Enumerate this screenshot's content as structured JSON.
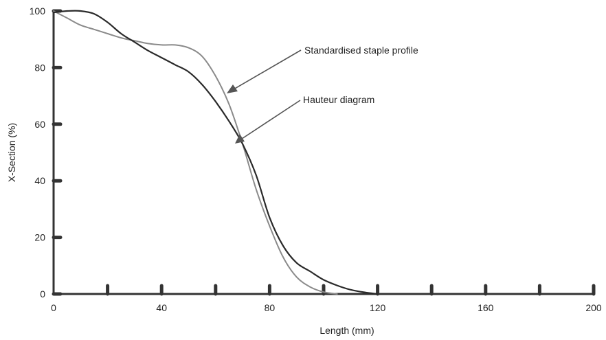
{
  "chart_data": {
    "type": "line",
    "xlabel": "Length (mm)",
    "ylabel": "X-Section (%)",
    "xlim": [
      0,
      200
    ],
    "ylim": [
      0,
      100
    ],
    "x_ticks": [
      0,
      20,
      40,
      60,
      80,
      100,
      120,
      140,
      160,
      180,
      200
    ],
    "x_tick_labels": [
      "0",
      "40",
      "80",
      "120",
      "160",
      "200"
    ],
    "y_ticks": [
      0,
      20,
      40,
      60,
      80,
      100
    ],
    "y_tick_labels": [
      "0",
      "20",
      "40",
      "60",
      "80",
      "100"
    ],
    "grid": false,
    "legend": "none",
    "series": [
      {
        "name": "Standardised staple profile",
        "color": "#8a8a8a",
        "x": [
          0,
          5,
          10,
          15,
          20,
          25,
          30,
          35,
          40,
          45,
          50,
          55,
          60,
          65,
          70,
          75,
          80,
          85,
          90,
          95,
          100,
          105
        ],
        "y": [
          100,
          97.5,
          95,
          93.5,
          92,
          90.5,
          89.5,
          88.5,
          88,
          88,
          87,
          84,
          77,
          67,
          53,
          37,
          24,
          13,
          6,
          2.5,
          0.7,
          0
        ]
      },
      {
        "name": "Hauteur diagram",
        "color": "#2a2a2a",
        "x": [
          0,
          5,
          10,
          15,
          20,
          25,
          30,
          35,
          40,
          45,
          50,
          55,
          60,
          65,
          70,
          75,
          80,
          85,
          90,
          95,
          100,
          105,
          110,
          115,
          120
        ],
        "y": [
          99.5,
          100,
          100,
          99,
          96,
          92,
          89,
          86,
          83.5,
          81,
          78.5,
          74,
          68,
          61,
          53,
          42,
          27,
          17,
          11,
          8,
          5,
          3,
          1.5,
          0.6,
          0
        ]
      }
    ],
    "annotations": [
      {
        "text": "Standardised staple profile",
        "points_to": "Standardised staple profile"
      },
      {
        "text": "Hauteur diagram",
        "points_to": "Hauteur diagram"
      }
    ]
  }
}
